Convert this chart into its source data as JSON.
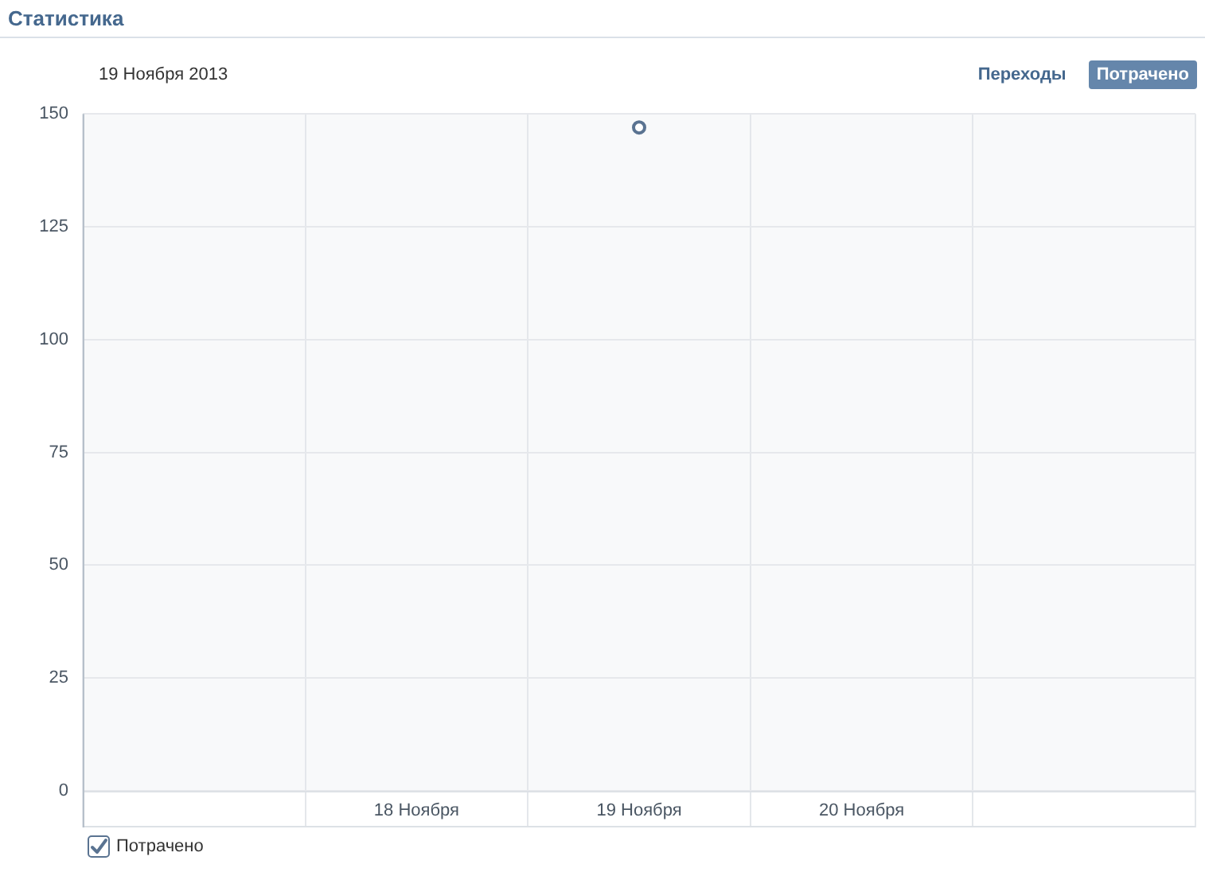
{
  "chart_data": {
    "type": "line",
    "title": "Статистика",
    "subtitle": "19 Ноября 2013",
    "annotations": [
      "Переходы",
      "Потрачено"
    ],
    "categories": [
      null,
      "18 Ноября",
      "19 Ноября",
      "20 Ноября",
      null
    ],
    "series": [
      {
        "name": "Потрачено",
        "color": "#5a7391",
        "values": [
          null,
          null,
          147,
          null,
          null
        ]
      }
    ],
    "ylim": [
      0,
      150
    ],
    "yticks": [
      0,
      25,
      50,
      75,
      100,
      125,
      150
    ],
    "grid": true,
    "legend": "bottom left",
    "marker": "circle"
  }
}
